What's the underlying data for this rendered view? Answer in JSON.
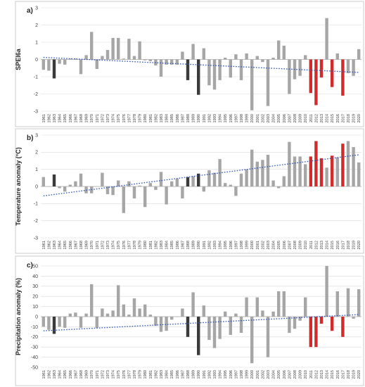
{
  "colors": {
    "normal": "#a6a6a6",
    "highlight_dark": "#3a3a3a",
    "highlight_red": "#d12b2b",
    "trend": "#2f55b8"
  },
  "chart_data": [
    {
      "type": "bar",
      "panel_label": "a)",
      "ylabel": "SPEI6a",
      "ylim": [
        -3,
        3
      ],
      "yticks": [
        3,
        2,
        1,
        0,
        -1,
        -2,
        -3
      ],
      "grid": true,
      "x": [
        1961,
        1962,
        1963,
        1964,
        1965,
        1966,
        1967,
        1968,
        1969,
        1970,
        1971,
        1972,
        1973,
        1974,
        1975,
        1976,
        1977,
        1978,
        1979,
        1980,
        1981,
        1982,
        1983,
        1984,
        1985,
        1986,
        1987,
        1988,
        1989,
        1990,
        1991,
        1992,
        1993,
        1994,
        1995,
        1996,
        1997,
        1998,
        1999,
        2000,
        2001,
        2002,
        2003,
        2004,
        2005,
        2006,
        2007,
        2008,
        2009,
        2010,
        2011,
        2012,
        2013,
        2014,
        2015,
        2016,
        2017,
        2018,
        2019,
        2020
      ],
      "values": [
        -0.6,
        -0.65,
        -1.1,
        -0.25,
        -0.3,
        0.05,
        0.05,
        -0.85,
        0.25,
        1.6,
        -0.55,
        0.2,
        0.55,
        1.25,
        1.25,
        0.05,
        1.2,
        0.2,
        1.05,
        -0.05,
        -0.1,
        -0.35,
        -1.0,
        -0.3,
        -0.3,
        -0.3,
        0.45,
        -1.2,
        0.9,
        -2.05,
        0.65,
        -1.5,
        -1.75,
        -1.2,
        0.1,
        -1.05,
        0.3,
        -1.2,
        0.35,
        -2.95,
        0.2,
        -0.15,
        -2.7,
        0.1,
        1.1,
        0.8,
        -2.0,
        -1.15,
        -0.95,
        0.25,
        -1.95,
        -2.65,
        -1.05,
        2.4,
        -1.6,
        0.35,
        -2.1,
        -0.8,
        -0.95,
        0.6
      ],
      "highlight": {
        "1963": "dark",
        "1988": "dark",
        "1990": "dark",
        "2011": "red",
        "2012": "red",
        "2013": "red",
        "2015": "red",
        "2017": "red"
      },
      "trend": [
        0.12,
        -0.75
      ]
    },
    {
      "type": "bar",
      "panel_label": "b)",
      "ylabel": "Temperature anomaly (°C)",
      "ylim": [
        -3,
        3
      ],
      "yticks": [
        3,
        2,
        1,
        0,
        -1,
        -2,
        -3
      ],
      "grid": true,
      "x": [
        1961,
        1962,
        1963,
        1964,
        1965,
        1966,
        1967,
        1968,
        1969,
        1970,
        1971,
        1972,
        1973,
        1974,
        1975,
        1976,
        1977,
        1978,
        1979,
        1980,
        1981,
        1982,
        1983,
        1984,
        1985,
        1986,
        1987,
        1988,
        1989,
        1990,
        1991,
        1992,
        1993,
        1994,
        1995,
        1996,
        1997,
        1998,
        1999,
        2000,
        2001,
        2002,
        2003,
        2004,
        2005,
        2006,
        2007,
        2008,
        2009,
        2010,
        2011,
        2012,
        2013,
        2014,
        2015,
        2016,
        2017,
        2018,
        2019,
        2020
      ],
      "values": [
        0.55,
        0.0,
        0.7,
        -0.1,
        -0.3,
        0.1,
        0.3,
        0.75,
        -0.4,
        -0.4,
        0.0,
        0.8,
        -0.45,
        -0.5,
        0.35,
        -1.55,
        0.3,
        -0.7,
        0.05,
        -1.2,
        0.2,
        -0.2,
        0.85,
        -1.05,
        0.3,
        0.45,
        -0.7,
        0.55,
        0.6,
        0.75,
        -0.3,
        0.95,
        0.8,
        1.6,
        0.2,
        0.1,
        -0.55,
        0.75,
        1.0,
        2.15,
        1.45,
        1.55,
        1.85,
        0.35,
        -0.1,
        0.6,
        2.6,
        1.75,
        1.75,
        1.3,
        1.75,
        2.65,
        1.65,
        1.1,
        1.8,
        1.7,
        2.5,
        2.65,
        2.3,
        1.4
      ],
      "highlight": {
        "1963": "dark",
        "1988": "dark",
        "1990": "dark",
        "2011": "red",
        "2012": "red",
        "2013": "red",
        "2015": "red",
        "2017": "red"
      },
      "trend": [
        -0.55,
        1.85
      ]
    },
    {
      "type": "bar",
      "panel_label": "c)",
      "ylabel": "Precipitation anomaly (%)",
      "ylim": [
        -50,
        50
      ],
      "yticks": [
        50,
        40,
        30,
        20,
        10,
        0,
        -10,
        -20,
        -30,
        -40,
        -50
      ],
      "grid": true,
      "x": [
        1961,
        1962,
        1963,
        1964,
        1965,
        1966,
        1967,
        1968,
        1969,
        1970,
        1971,
        1972,
        1973,
        1974,
        1975,
        1976,
        1977,
        1978,
        1979,
        1980,
        1981,
        1982,
        1983,
        1984,
        1985,
        1986,
        1987,
        1988,
        1989,
        1990,
        1991,
        1992,
        1993,
        1994,
        1995,
        1996,
        1997,
        1998,
        1999,
        2000,
        2001,
        2002,
        2003,
        2004,
        2005,
        2006,
        2007,
        2008,
        2009,
        2010,
        2011,
        2012,
        2013,
        2014,
        2015,
        2016,
        2017,
        2018,
        2019,
        2020
      ],
      "values": [
        -10,
        -13,
        -17,
        -10,
        -11,
        3,
        4,
        -11,
        3,
        32,
        -11,
        8,
        3,
        6,
        31,
        12,
        2,
        18,
        8,
        12,
        2,
        -9,
        -15,
        -14,
        -3,
        0,
        8,
        -20,
        24,
        -38,
        11,
        -23,
        -31,
        -22,
        5,
        -18,
        3,
        -16,
        19,
        -46,
        19,
        6,
        -40,
        5,
        25,
        25,
        -16,
        -12,
        -4,
        19,
        -30,
        -30,
        -7,
        50,
        -14,
        25,
        -20,
        28,
        -2,
        27
      ],
      "highlight": {
        "1963": "dark",
        "1988": "dark",
        "1990": "dark",
        "2011": "red",
        "2012": "red",
        "2013": "red",
        "2015": "red",
        "2017": "red"
      },
      "trend": [
        -14,
        2
      ]
    }
  ]
}
